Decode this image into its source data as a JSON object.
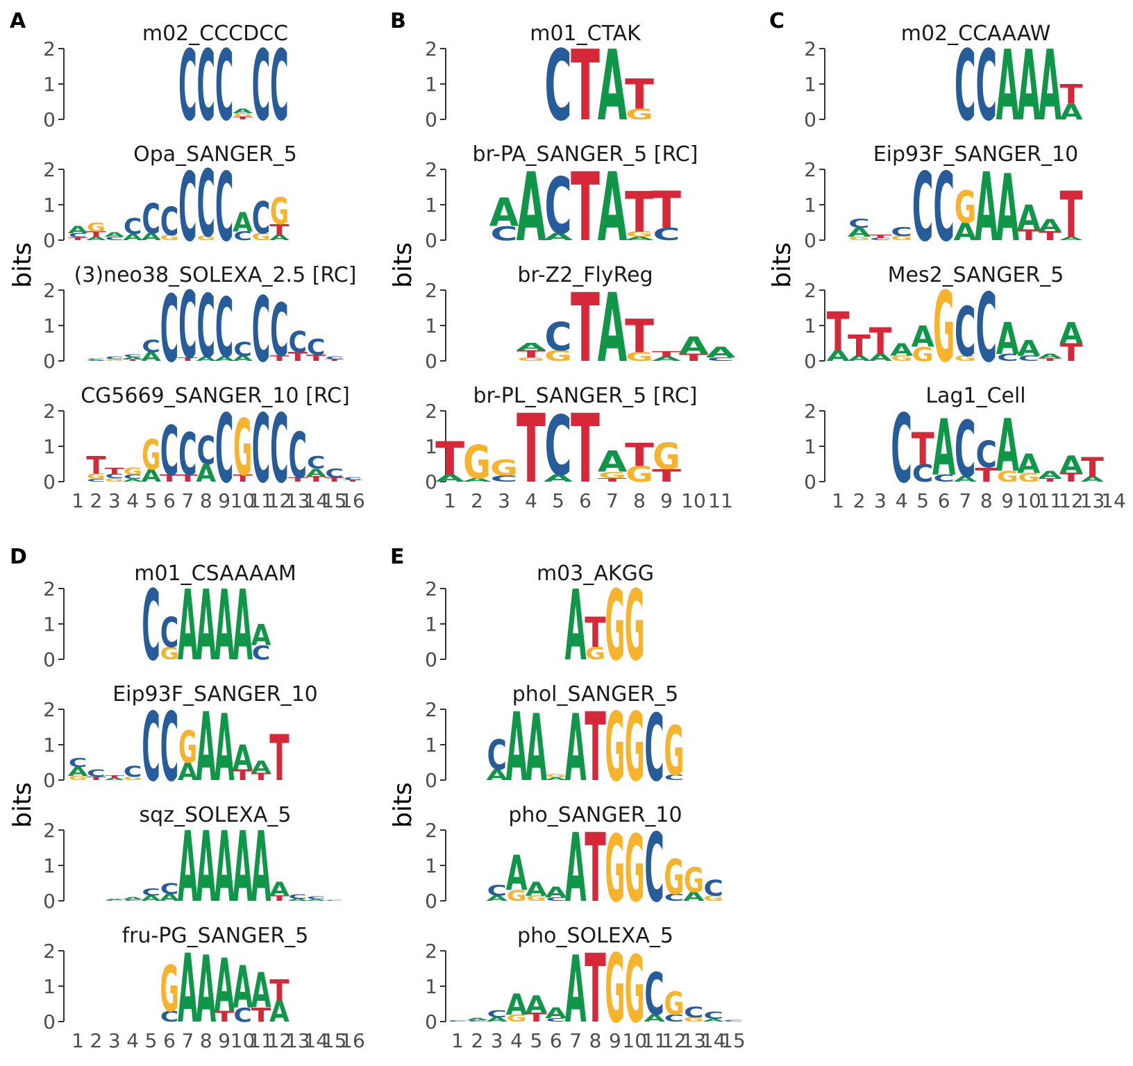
{
  "colors": {
    "A": "#109648",
    "C": "#255C99",
    "G": "#F7B32B",
    "T": "#D62839"
  },
  "chart_data": [
    {
      "type": "sequence-logo",
      "panel": "A",
      "ylabel": "bits",
      "ylim": [
        0,
        2
      ],
      "yticks": [
        "0",
        "1",
        "2"
      ],
      "xticks": [
        "1",
        "2",
        "3",
        "4",
        "5",
        "6",
        "7",
        "8",
        "9",
        "10",
        "11",
        "12",
        "13",
        "14",
        "15",
        "16"
      ],
      "logos": [
        {
          "title": "m02_CCCDCC",
          "positions": [
            {},
            {},
            {},
            {},
            {},
            {},
            {
              "C": 2.0
            },
            {
              "C": 2.0
            },
            {
              "C": 2.0
            },
            {
              "A": 0.12,
              "G": 0.1,
              "T": 0.08
            },
            {
              "C": 2.0
            },
            {
              "C": 2.0
            },
            {},
            {},
            {},
            {}
          ]
        },
        {
          "title": "Opa_SANGER_5",
          "positions": [
            {
              "A": 0.2,
              "C": 0.12,
              "T": 0.08
            },
            {
              "G": 0.25,
              "T": 0.15,
              "A": 0.1
            },
            {
              "A": 0.12,
              "C": 0.1
            },
            {
              "C": 0.45,
              "A": 0.18
            },
            {
              "C": 0.85,
              "A": 0.2
            },
            {
              "C": 0.8,
              "G": 0.15
            },
            {
              "C": 1.95
            },
            {
              "C": 1.9,
              "G": 0.12
            },
            {
              "C": 1.95
            },
            {
              "A": 0.55,
              "C": 0.25
            },
            {
              "C": 0.9,
              "G": 0.2
            },
            {
              "G": 0.75,
              "T": 0.3,
              "A": 0.15
            },
            {},
            {},
            {},
            {}
          ]
        },
        {
          "title": "(3)neo38_SOLEXA_2.5 [RC]",
          "positions": [
            {},
            {
              "C": 0.04,
              "A": 0.03
            },
            {
              "C": 0.08,
              "G": 0.05
            },
            {
              "C": 0.08,
              "A": 0.06,
              "T": 0.05
            },
            {
              "C": 0.35,
              "A": 0.25
            },
            {
              "C": 1.9
            },
            {
              "C": 1.9,
              "T": 0.1
            },
            {
              "C": 1.8,
              "A": 0.12
            },
            {
              "C": 1.7,
              "A": 0.12
            },
            {
              "C": 0.4,
              "A": 0.15
            },
            {
              "C": 1.85
            },
            {
              "C": 1.5,
              "T": 0.15
            },
            {
              "C": 0.6,
              "T": 0.25
            },
            {
              "C": 0.45,
              "T": 0.18
            },
            {
              "C": 0.08,
              "T": 0.05
            },
            {}
          ]
        },
        {
          "title": "CG5669_SANGER_10 [RC]",
          "positions": [
            {},
            {
              "T": 0.5,
              "G": 0.15,
              "C": 0.08
            },
            {
              "T": 0.18,
              "C": 0.12,
              "G": 0.1
            },
            {
              "G": 0.2,
              "C": 0.12,
              "A": 0.08
            },
            {
              "G": 0.85,
              "A": 0.35
            },
            {
              "C": 1.4,
              "T": 0.2
            },
            {
              "C": 1.2,
              "T": 0.2
            },
            {
              "C": 0.8,
              "A": 0.5
            },
            {
              "C": 1.95
            },
            {
              "G": 1.6,
              "T": 0.2
            },
            {
              "C": 1.95
            },
            {
              "C": 1.95
            },
            {
              "C": 1.3,
              "T": 0.12
            },
            {
              "C": 0.35,
              "A": 0.22,
              "T": 0.15
            },
            {
              "C": 0.25,
              "T": 0.12
            },
            {
              "C": 0.08,
              "T": 0.05
            }
          ]
        }
      ]
    },
    {
      "type": "sequence-logo",
      "panel": "B",
      "ylabel": "bits",
      "ylim": [
        0,
        2
      ],
      "yticks": [
        "0",
        "1",
        "2"
      ],
      "xticks": [
        "1",
        "2",
        "3",
        "4",
        "5",
        "6",
        "7",
        "8",
        "9",
        "10",
        "11"
      ],
      "logos": [
        {
          "title": "m01_CTAK",
          "positions": [
            {},
            {},
            {},
            {},
            {
              "C": 2.0
            },
            {
              "T": 2.0
            },
            {
              "A": 2.0
            },
            {
              "T": 0.85,
              "G": 0.3
            },
            {},
            {},
            {}
          ]
        },
        {
          "title": "br-PA_SANGER_5 [RC]",
          "positions": [
            {},
            {},
            {
              "A": 0.8,
              "C": 0.4
            },
            {
              "A": 1.95
            },
            {
              "C": 1.6,
              "A": 0.2
            },
            {
              "T": 1.95
            },
            {
              "A": 1.95
            },
            {
              "T": 1.15,
              "G": 0.15,
              "A": 0.1
            },
            {
              "T": 1.05,
              "C": 0.35
            },
            {},
            {}
          ]
        },
        {
          "title": "br-Z2_FlyReg",
          "positions": [
            {},
            {},
            {},
            {
              "T": 0.2,
              "A": 0.2,
              "G": 0.1
            },
            {
              "C": 0.8,
              "G": 0.3
            },
            {
              "T": 1.95
            },
            {
              "A": 1.95
            },
            {
              "T": 0.95,
              "G": 0.25
            },
            {
              "T": 0.15,
              "A": 0.12
            },
            {
              "A": 0.5,
              "T": 0.2
            },
            {
              "A": 0.3,
              "C": 0.1
            }
          ]
        },
        {
          "title": "br-PL_SANGER_5 [RC]",
          "positions": [
            {
              "T": 0.95,
              "A": 0.2
            },
            {
              "G": 0.95,
              "A": 0.1
            },
            {
              "G": 0.45,
              "C": 0.18
            },
            {
              "T": 1.95
            },
            {
              "C": 1.7,
              "A": 0.2
            },
            {
              "T": 1.95
            },
            {
              "A": 0.6,
              "G": 0.18,
              "T": 0.1
            },
            {
              "T": 0.65,
              "G": 0.45
            },
            {
              "G": 0.75,
              "T": 0.35
            },
            {},
            {}
          ]
        }
      ]
    },
    {
      "type": "sequence-logo",
      "panel": "C",
      "ylabel": "bits",
      "ylim": [
        0,
        2
      ],
      "yticks": [
        "0",
        "1",
        "2"
      ],
      "xticks": [
        "1",
        "2",
        "3",
        "4",
        "5",
        "6",
        "7",
        "8",
        "9",
        "10",
        "11",
        "12",
        "13",
        "14"
      ],
      "logos": [
        {
          "title": "m02_CCAAAW",
          "positions": [
            {},
            {},
            {},
            {},
            {},
            {},
            {
              "C": 2.0
            },
            {
              "C": 2.0
            },
            {
              "A": 2.0
            },
            {
              "A": 2.0
            },
            {
              "A": 2.0
            },
            {
              "T": 0.55,
              "A": 0.45
            },
            {},
            {}
          ]
        },
        {
          "title": "Eip93F_SANGER_10",
          "positions": [
            {},
            {
              "A": 0.25,
              "C": 0.25,
              "G": 0.1
            },
            {
              "T": 0.1,
              "C": 0.06
            },
            {
              "C": 0.25,
              "G": 0.12
            },
            {
              "C": 1.95
            },
            {
              "C": 1.95
            },
            {
              "G": 0.9,
              "A": 0.5
            },
            {
              "A": 1.95
            },
            {
              "A": 1.9
            },
            {
              "A": 0.7,
              "T": 0.3
            },
            {
              "A": 0.35,
              "T": 0.25
            },
            {
              "T": 1.3,
              "A": 0.1
            }
          ]
        },
        {
          "title": "Mes2_SANGER_5",
          "positions": [
            {
              "T": 1.1,
              "A": 0.3
            },
            {
              "T": 0.6,
              "A": 0.15
            },
            {
              "T": 0.75,
              "A": 0.2
            },
            {
              "A": 0.35,
              "G": 0.15
            },
            {
              "A": 0.6,
              "G": 0.4
            },
            {
              "G": 2.0
            },
            {
              "C": 1.4,
              "G": 0.15
            },
            {
              "C": 1.95
            },
            {
              "A": 0.9,
              "C": 0.2
            },
            {
              "A": 0.45,
              "C": 0.15
            },
            {
              "A": 0.12,
              "T": 0.08
            },
            {
              "A": 0.6,
              "T": 0.5
            }
          ]
        },
        {
          "title": "Lag1_Cell",
          "positions": [
            {},
            {},
            {},
            {
              "C": 1.95
            },
            {
              "T": 0.9,
              "C": 0.5
            },
            {
              "A": 1.6,
              "C": 0.2
            },
            {
              "C": 1.6,
              "A": 0.15
            },
            {
              "C": 0.75,
              "T": 0.4
            },
            {
              "A": 1.5,
              "G": 0.3
            },
            {
              "A": 0.55,
              "G": 0.25
            },
            {
              "A": 0.2,
              "T": 0.1
            },
            {
              "A": 0.5,
              "T": 0.25
            },
            {
              "T": 0.55,
              "A": 0.15
            },
            {}
          ]
        }
      ]
    },
    {
      "type": "sequence-logo",
      "panel": "D",
      "ylabel": "bits",
      "ylim": [
        0,
        2
      ],
      "yticks": [
        "0",
        "1",
        "2"
      ],
      "xticks": [
        "1",
        "2",
        "3",
        "4",
        "5",
        "6",
        "7",
        "8",
        "9",
        "10",
        "11",
        "12",
        "13",
        "14",
        "15",
        "16"
      ],
      "logos": [
        {
          "title": "m01_CSAAAAM",
          "positions": [
            {},
            {},
            {},
            {},
            {
              "C": 2.0
            },
            {
              "C": 0.85,
              "G": 0.35
            },
            {
              "A": 2.0
            },
            {
              "A": 2.0
            },
            {
              "A": 2.0
            },
            {
              "A": 2.0
            },
            {
              "A": 0.6,
              "C": 0.4
            },
            {},
            {},
            {},
            {},
            {}
          ]
        },
        {
          "title": "Eip93F_SANGER_10",
          "positions": [
            {
              "A": 0.25,
              "C": 0.25,
              "G": 0.12
            },
            {
              "C": 0.2,
              "T": 0.1
            },
            {
              "T": 0.08,
              "A": 0.06
            },
            {
              "C": 0.3,
              "G": 0.1
            },
            {
              "C": 1.95
            },
            {
              "C": 1.95
            },
            {
              "G": 0.9,
              "A": 0.5
            },
            {
              "A": 1.95
            },
            {
              "A": 1.9
            },
            {
              "A": 0.7,
              "T": 0.3
            },
            {
              "A": 0.35,
              "T": 0.2
            },
            {
              "T": 1.3
            },
            {},
            {},
            {},
            {}
          ]
        },
        {
          "title": "sqz_SOLEXA_5",
          "positions": [
            {},
            {},
            {
              "C": 0.03,
              "A": 0.03
            },
            {
              "A": 0.06,
              "C": 0.04
            },
            {
              "C": 0.2,
              "A": 0.15
            },
            {
              "C": 0.3,
              "A": 0.2
            },
            {
              "A": 2.0
            },
            {
              "A": 2.0
            },
            {
              "A": 2.0
            },
            {
              "A": 2.0
            },
            {
              "A": 2.0
            },
            {
              "A": 0.4,
              "T": 0.15
            },
            {
              "C": 0.12,
              "A": 0.06
            },
            {
              "C": 0.08,
              "A": 0.05
            },
            {
              "C": 0.03
            },
            {}
          ]
        },
        {
          "title": "fru-PG_SANGER_5",
          "positions": [
            {},
            {},
            {},
            {},
            {},
            {
              "G": 1.3,
              "C": 0.3
            },
            {
              "A": 1.95
            },
            {
              "A": 1.9
            },
            {
              "A": 1.5,
              "T": 0.3
            },
            {
              "A": 1.2,
              "C": 0.4
            },
            {
              "A": 1.0,
              "T": 0.4
            },
            {
              "A": 0.6,
              "T": 0.6
            },
            {},
            {},
            {},
            {}
          ]
        }
      ]
    },
    {
      "type": "sequence-logo",
      "panel": "E",
      "ylabel": "bits",
      "ylim": [
        0,
        2
      ],
      "yticks": [
        "0",
        "1",
        "2"
      ],
      "xticks": [
        "1",
        "2",
        "3",
        "4",
        "5",
        "6",
        "7",
        "8",
        "9",
        "10",
        "11",
        "12",
        "13",
        "14",
        "15"
      ],
      "logos": [
        {
          "title": "m03_AKGG",
          "positions": [
            {},
            {},
            {},
            {},
            {},
            {},
            {
              "A": 2.0
            },
            {
              "T": 0.85,
              "G": 0.35
            },
            {
              "G": 2.0
            },
            {
              "G": 2.0
            },
            {},
            {},
            {},
            {},
            {}
          ]
        },
        {
          "title": "phol_SANGER_5",
          "positions": [
            {},
            {},
            {
              "C": 0.85,
              "A": 0.3
            },
            {
              "A": 1.95
            },
            {
              "A": 1.9
            },
            {
              "G": 0.1,
              "A": 0.08
            },
            {
              "A": 1.9
            },
            {
              "T": 1.95
            },
            {
              "G": 1.95
            },
            {
              "G": 1.95
            },
            {
              "C": 1.9
            },
            {
              "G": 1.4,
              "C": 0.15
            },
            {},
            {},
            {}
          ]
        },
        {
          "title": "pho_SANGER_10",
          "positions": [
            {},
            {},
            {
              "C": 0.3,
              "A": 0.15
            },
            {
              "A": 1.0,
              "G": 0.3
            },
            {
              "A": 0.4,
              "G": 0.15
            },
            {
              "A": 0.3,
              "C": 0.1
            },
            {
              "A": 1.95
            },
            {
              "T": 1.95
            },
            {
              "G": 1.9
            },
            {
              "G": 1.9
            },
            {
              "C": 1.95
            },
            {
              "G": 1.0,
              "C": 0.2
            },
            {
              "G": 0.7,
              "A": 0.25
            },
            {
              "C": 0.45,
              "G": 0.15
            },
            {}
          ]
        },
        {
          "title": "pho_SOLEXA_5",
          "positions": [
            {
              "C": 0.04
            },
            {
              "A": 0.06,
              "C": 0.04
            },
            {
              "C": 0.2,
              "A": 0.12
            },
            {
              "A": 0.6,
              "G": 0.2
            },
            {
              "A": 0.5,
              "T": 0.25
            },
            {
              "A": 0.3,
              "C": 0.1
            },
            {
              "A": 1.9
            },
            {
              "T": 1.95
            },
            {
              "G": 1.95
            },
            {
              "G": 1.9
            },
            {
              "C": 1.2,
              "A": 0.2
            },
            {
              "G": 0.65,
              "C": 0.2
            },
            {
              "C": 0.3,
              "G": 0.12
            },
            {
              "C": 0.2,
              "A": 0.08
            },
            {
              "C": 0.05
            }
          ]
        }
      ]
    }
  ]
}
